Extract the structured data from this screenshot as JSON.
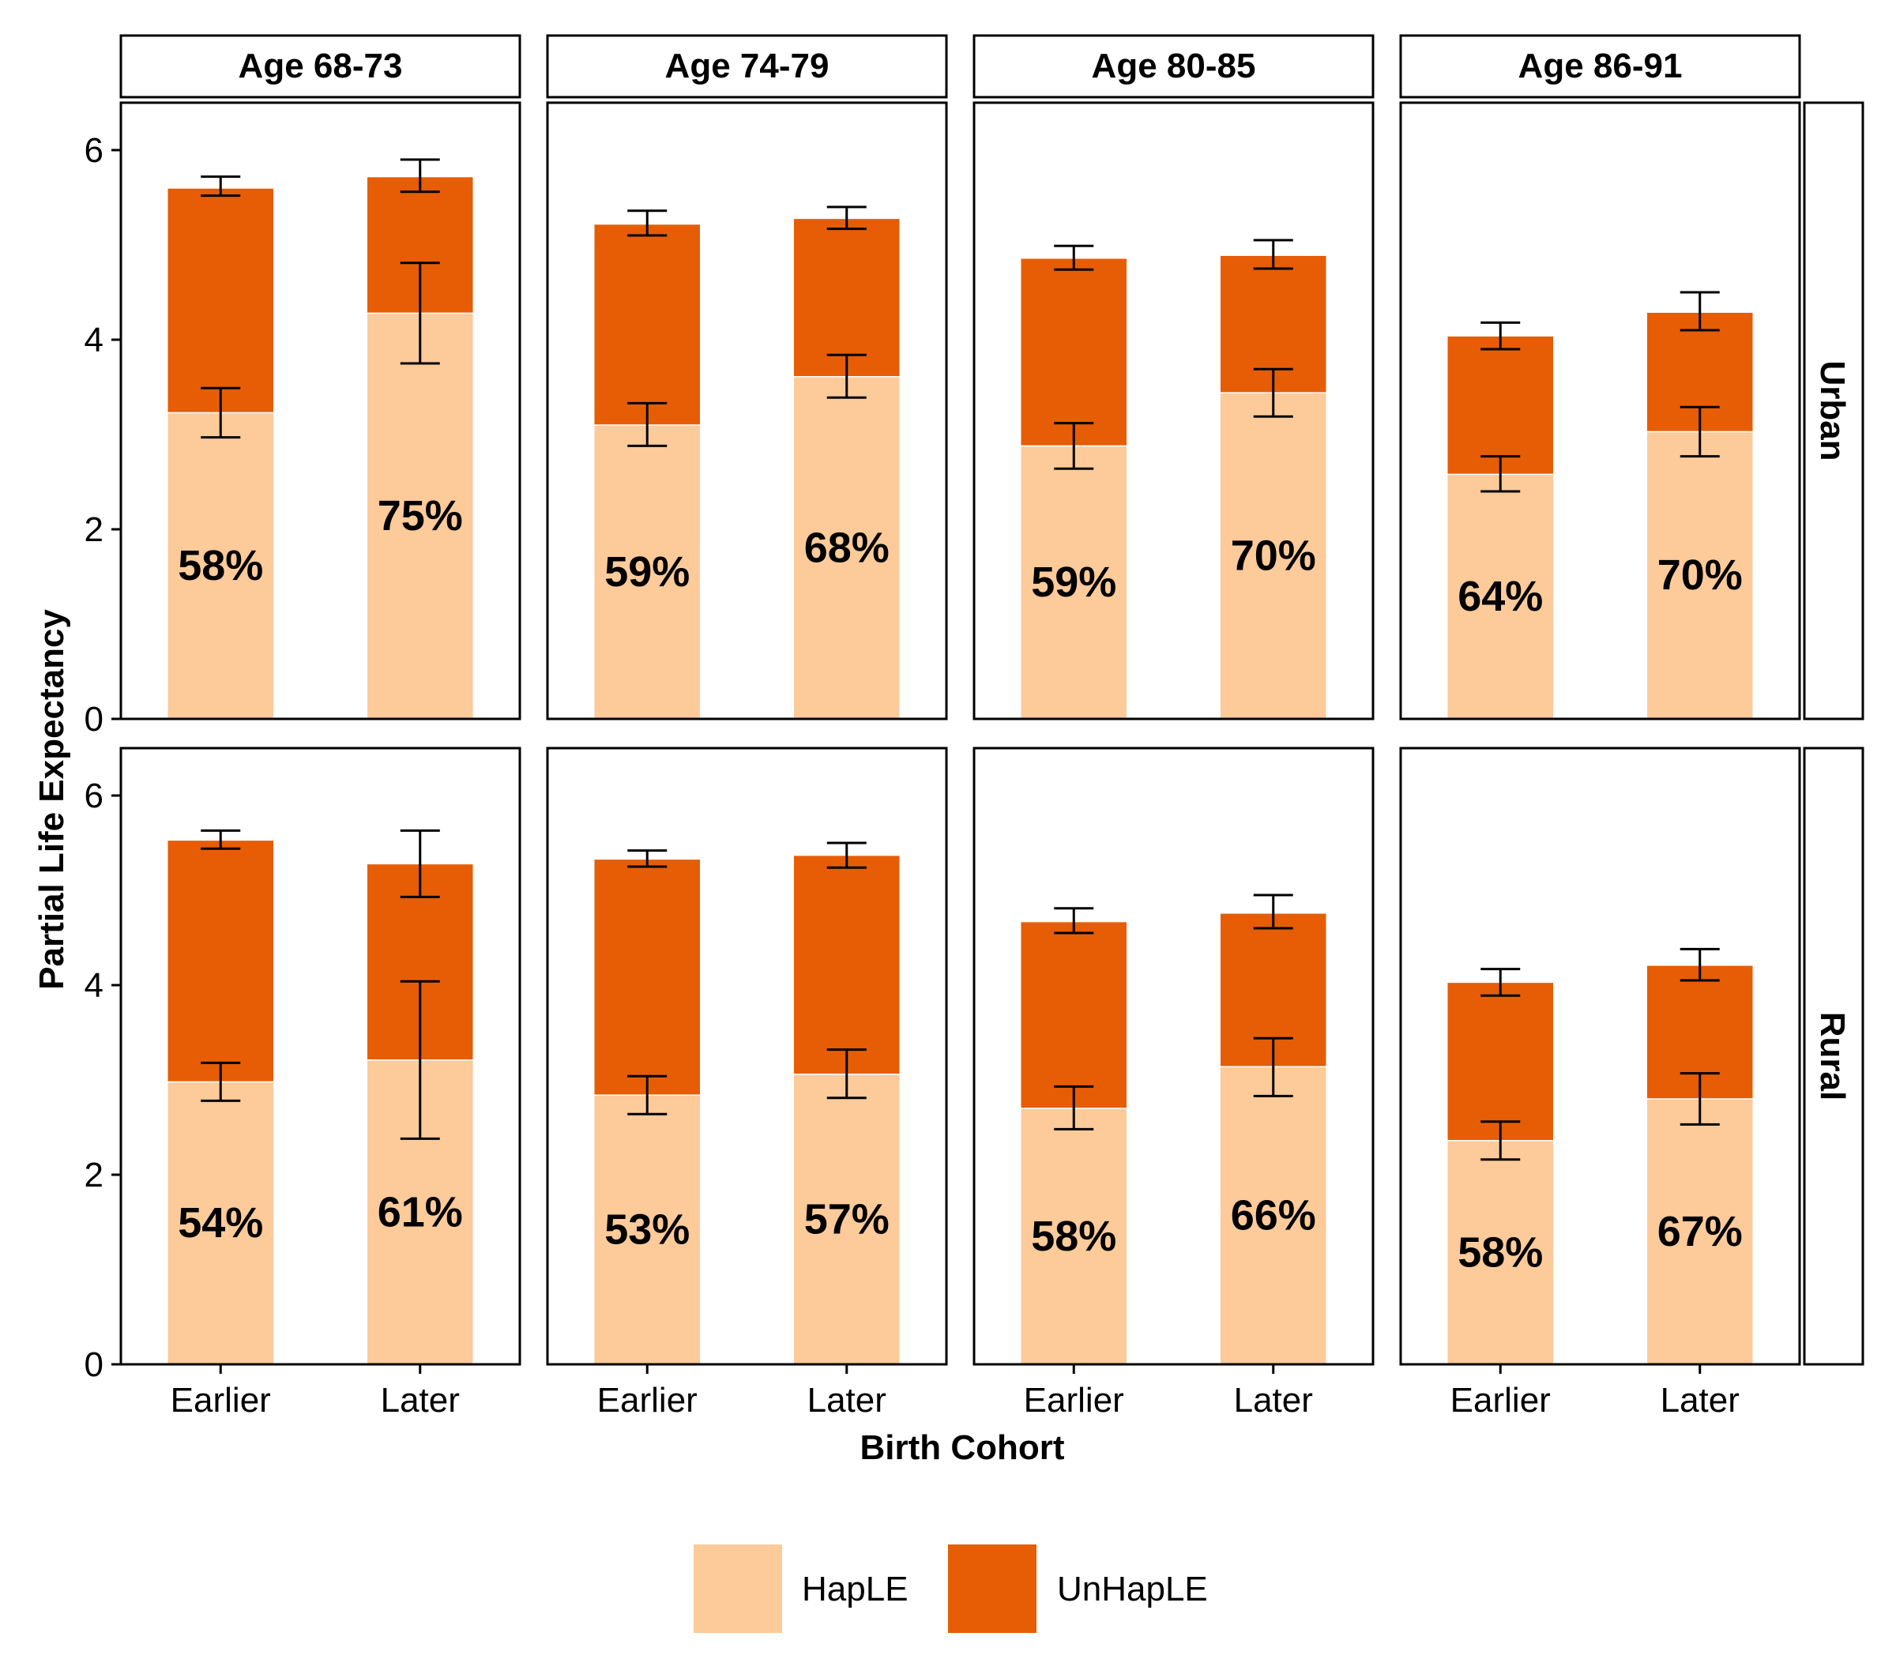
{
  "chart_data": {
    "type": "bar",
    "stacked": true,
    "title": "",
    "xlabel": "Birth Cohort",
    "ylabel": "Partial Life Expectancy",
    "ylim": [
      0,
      6.5
    ],
    "yticks": [
      0,
      2,
      4,
      6
    ],
    "grid": false,
    "legend_position": "bottom",
    "categories": [
      "Earlier",
      "Later"
    ],
    "column_facets": [
      "Age 68-73",
      "Age 74-79",
      "Age 80-85",
      "Age 86-91"
    ],
    "row_facets": [
      "Urban",
      "Rural"
    ],
    "series_names": [
      "HapLE",
      "UnHapLE"
    ],
    "colors": {
      "HapLE": "#fdca9a",
      "UnHapLE": "#e65d06"
    },
    "panels": [
      {
        "row": "Urban",
        "col": "Age 68-73",
        "bars": [
          {
            "category": "Earlier",
            "haple": 3.23,
            "total": 5.6,
            "haple_err": [
              2.97,
              3.49
            ],
            "total_err": [
              5.52,
              5.72
            ],
            "pct": "58%"
          },
          {
            "category": "Later",
            "haple": 4.28,
            "total": 5.72,
            "haple_err": [
              3.75,
              4.81
            ],
            "total_err": [
              5.56,
              5.9
            ],
            "pct": "75%"
          }
        ]
      },
      {
        "row": "Urban",
        "col": "Age 74-79",
        "bars": [
          {
            "category": "Earlier",
            "haple": 3.1,
            "total": 5.22,
            "haple_err": [
              2.88,
              3.33
            ],
            "total_err": [
              5.1,
              5.36
            ],
            "pct": "59%"
          },
          {
            "category": "Later",
            "haple": 3.61,
            "total": 5.28,
            "haple_err": [
              3.39,
              3.84
            ],
            "total_err": [
              5.17,
              5.4
            ],
            "pct": "68%"
          }
        ]
      },
      {
        "row": "Urban",
        "col": "Age 80-85",
        "bars": [
          {
            "category": "Earlier",
            "haple": 2.88,
            "total": 4.86,
            "haple_err": [
              2.64,
              3.12
            ],
            "total_err": [
              4.74,
              4.99
            ],
            "pct": "59%"
          },
          {
            "category": "Later",
            "haple": 3.44,
            "total": 4.89,
            "haple_err": [
              3.19,
              3.69
            ],
            "total_err": [
              4.75,
              5.05
            ],
            "pct": "70%"
          }
        ]
      },
      {
        "row": "Urban",
        "col": "Age 86-91",
        "bars": [
          {
            "category": "Earlier",
            "haple": 2.58,
            "total": 4.04,
            "haple_err": [
              2.4,
              2.77
            ],
            "total_err": [
              3.9,
              4.18
            ],
            "pct": "64%"
          },
          {
            "category": "Later",
            "haple": 3.03,
            "total": 4.29,
            "haple_err": [
              2.77,
              3.29
            ],
            "total_err": [
              4.1,
              4.5
            ],
            "pct": "70%"
          }
        ]
      },
      {
        "row": "Rural",
        "col": "Age 68-73",
        "bars": [
          {
            "category": "Earlier",
            "haple": 2.98,
            "total": 5.53,
            "haple_err": [
              2.78,
              3.18
            ],
            "total_err": [
              5.44,
              5.63
            ],
            "pct": "54%"
          },
          {
            "category": "Later",
            "haple": 3.21,
            "total": 5.28,
            "haple_err": [
              2.38,
              4.04
            ],
            "total_err": [
              4.93,
              5.63
            ],
            "pct": "61%"
          }
        ]
      },
      {
        "row": "Rural",
        "col": "Age 74-79",
        "bars": [
          {
            "category": "Earlier",
            "haple": 2.84,
            "total": 5.33,
            "haple_err": [
              2.64,
              3.04
            ],
            "total_err": [
              5.25,
              5.42
            ],
            "pct": "53%"
          },
          {
            "category": "Later",
            "haple": 3.06,
            "total": 5.37,
            "haple_err": [
              2.81,
              3.32
            ],
            "total_err": [
              5.24,
              5.5
            ],
            "pct": "57%"
          }
        ]
      },
      {
        "row": "Rural",
        "col": "Age 80-85",
        "bars": [
          {
            "category": "Earlier",
            "haple": 2.7,
            "total": 4.67,
            "haple_err": [
              2.48,
              2.93
            ],
            "total_err": [
              4.55,
              4.81
            ],
            "pct": "58%"
          },
          {
            "category": "Later",
            "haple": 3.14,
            "total": 4.76,
            "haple_err": [
              2.83,
              3.44
            ],
            "total_err": [
              4.6,
              4.95
            ],
            "pct": "66%"
          }
        ]
      },
      {
        "row": "Rural",
        "col": "Age 86-91",
        "bars": [
          {
            "category": "Earlier",
            "haple": 2.36,
            "total": 4.03,
            "haple_err": [
              2.16,
              2.56
            ],
            "total_err": [
              3.89,
              4.17
            ],
            "pct": "58%"
          },
          {
            "category": "Later",
            "haple": 2.8,
            "total": 4.21,
            "haple_err": [
              2.53,
              3.07
            ],
            "total_err": [
              4.05,
              4.38
            ],
            "pct": "67%"
          }
        ]
      }
    ]
  }
}
